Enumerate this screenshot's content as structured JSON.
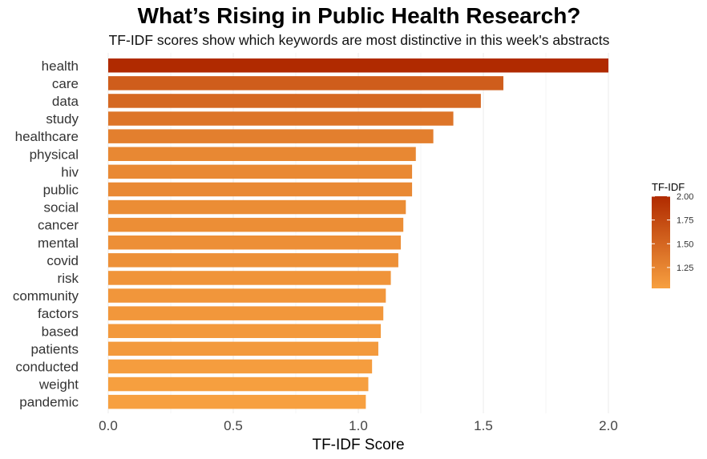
{
  "chart_data": {
    "type": "bar",
    "orientation": "horizontal",
    "title": "What’s Rising in Public Health Research?",
    "subtitle": "TF-IDF scores show which keywords are most distinctive in this week's abstracts",
    "xlabel": "TF-IDF Score",
    "ylabel": "",
    "xlim": [
      0,
      2.0
    ],
    "x_ticks": [
      0.0,
      0.5,
      1.0,
      1.5,
      2.0
    ],
    "x_tick_labels": [
      "0.0",
      "0.5",
      "1.0",
      "1.5",
      "2.0"
    ],
    "grid": true,
    "categories": [
      "health",
      "care",
      "data",
      "study",
      "healthcare",
      "physical",
      "hiv",
      "public",
      "social",
      "cancer",
      "mental",
      "covid",
      "risk",
      "community",
      "factors",
      "based",
      "patients",
      "conducted",
      "weight",
      "pandemic"
    ],
    "values": [
      2.0,
      1.58,
      1.49,
      1.38,
      1.3,
      1.23,
      1.215,
      1.215,
      1.19,
      1.18,
      1.17,
      1.16,
      1.13,
      1.11,
      1.1,
      1.09,
      1.08,
      1.055,
      1.04,
      1.03
    ],
    "legend": {
      "title": "TF-IDF",
      "placement": "right",
      "ticks": [
        2.0,
        1.75,
        1.5,
        1.25
      ],
      "tick_labels": [
        "2.00",
        "1.75",
        "1.50",
        "1.25"
      ],
      "range": [
        1.03,
        2.0
      ],
      "color_low": "#f7a040",
      "color_high": "#b02a00"
    }
  }
}
